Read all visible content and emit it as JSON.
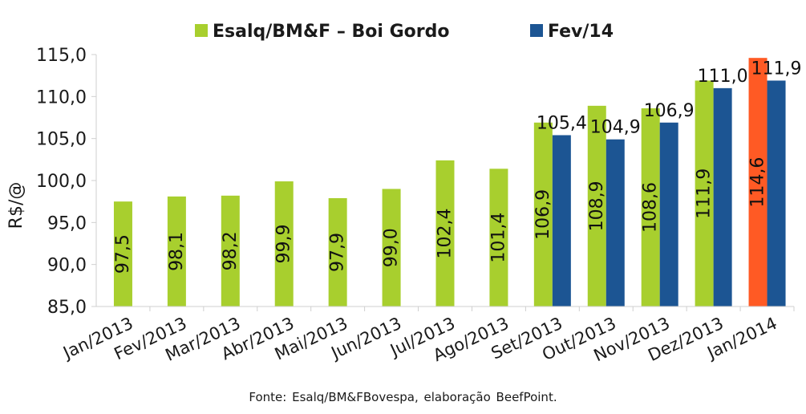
{
  "chart_data": {
    "type": "bar",
    "title": "",
    "xlabel": "",
    "ylabel": "R$/@",
    "ylim": [
      85,
      115
    ],
    "yticks": [
      "85,0",
      "90,0",
      "95,0",
      "100,0",
      "105,0",
      "110,0",
      "115,0"
    ],
    "legend_position": "top",
    "grid": false,
    "categories": [
      "Jan/2013",
      "Fev/2013",
      "Mar/2013",
      "Abr/2013",
      "Mai/2013",
      "Jun/2013",
      "Jul/2013",
      "Ago/2013",
      "Set/2013",
      "Out/2013",
      "Nov/2013",
      "Dez/2013",
      "Jan/2014"
    ],
    "series": [
      {
        "name": "Esalq/BM&F – Boi Gordo",
        "color": "#a8cf2e",
        "values": [
          97.5,
          98.1,
          98.2,
          99.9,
          97.9,
          99.0,
          102.4,
          101.4,
          106.9,
          108.9,
          108.6,
          111.9,
          114.6
        ],
        "labels": [
          "97,5",
          "98,1",
          "98,2",
          "99,9",
          "97,9",
          "99,0",
          "102,4",
          "101,4",
          "106,9",
          "108,9",
          "108,6",
          "111,9",
          "114,6"
        ],
        "highlight": {
          "index": 12,
          "color": "#ff5a24"
        }
      },
      {
        "name": "Fev/14",
        "color": "#1c5593",
        "values": [
          null,
          null,
          null,
          null,
          null,
          null,
          null,
          null,
          105.4,
          104.9,
          106.9,
          111.0,
          111.9
        ],
        "labels": [
          "",
          "",
          "",
          "",
          "",
          "",
          "",
          "",
          "105,4",
          "104,9",
          "106,9",
          "111,0",
          "111,9"
        ]
      }
    ]
  },
  "source_note": "Fonte: Esalq/BM&FBovespa, elaboração BeefPoint."
}
